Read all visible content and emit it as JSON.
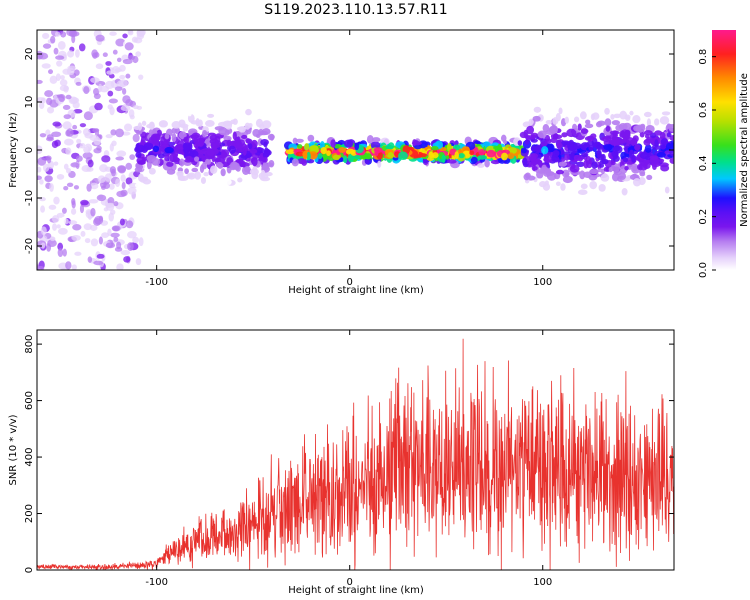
{
  "title": "S119.2023.110.13.57.R11",
  "colors": {
    "snr_line": "#e8322e",
    "axis": "#000000",
    "colorscale": [
      "#ffffff",
      "#e6d2fb",
      "#b57cf0",
      "#7a16ee",
      "#5a10f5",
      "#1e10ff",
      "#00c8ff",
      "#00e08a",
      "#38e01c",
      "#b8e000",
      "#ffe000",
      "#ff8a00",
      "#ff2020",
      "#ff1a8c"
    ]
  },
  "chart_data": [
    {
      "type": "heatmap",
      "name": "spectrogram",
      "xlabel": "Height of straight line (km)",
      "ylabel": "Frequency (Hz)",
      "xlim": [
        -162,
        168
      ],
      "ylim": [
        -25,
        25
      ],
      "xticks": [
        -100,
        0,
        100
      ],
      "yticks": [
        -20,
        -10,
        0,
        10,
        20
      ],
      "colorbar": {
        "label": "Normalized spectral amplitude",
        "range": [
          0.0,
          0.9
        ],
        "ticks": [
          "0.0",
          "0.2",
          "0.4",
          "0.6",
          "0.8"
        ]
      },
      "features": [
        {
          "region": "noise",
          "x_range": [
            -162,
            -108
          ],
          "freq_range": [
            -25,
            25
          ],
          "amplitude": 0.1
        },
        {
          "region": "carrier",
          "x_range": [
            -110,
            -40
          ],
          "center_freq": 0,
          "spread_hz": 6,
          "amplitude": 0.25
        },
        {
          "region": "carrier",
          "x_range": [
            -32,
            90
          ],
          "center_freq": -0.5,
          "spread_hz": 2,
          "amplitude": 0.85
        },
        {
          "region": "carrier",
          "x_range": [
            90,
            168
          ],
          "center_freq": 0,
          "spread_hz": 7,
          "amplitude": 0.3
        }
      ]
    },
    {
      "type": "line",
      "name": "snr",
      "xlabel": "Height of straight line (km)",
      "ylabel": "SNR (10 * v/v)",
      "xlim": [
        -162,
        168
      ],
      "ylim": [
        0,
        850
      ],
      "xticks": [
        -100,
        0,
        100
      ],
      "yticks": [
        0,
        200,
        400,
        600,
        800
      ],
      "series": [
        {
          "x": [
            -162,
            -140,
            -120,
            -100,
            -90,
            -80,
            -70,
            -60,
            -50,
            -40,
            -30,
            -20,
            -10,
            0,
            10,
            20,
            30,
            40,
            50,
            60,
            70,
            80,
            90,
            100,
            110,
            120,
            130,
            140,
            150,
            160,
            168
          ],
          "y": [
            12,
            10,
            12,
            20,
            70,
            100,
            115,
            130,
            160,
            195,
            230,
            250,
            260,
            290,
            300,
            320,
            355,
            360,
            370,
            380,
            370,
            350,
            345,
            370,
            340,
            330,
            330,
            350,
            330,
            320,
            330
          ]
        }
      ]
    }
  ]
}
